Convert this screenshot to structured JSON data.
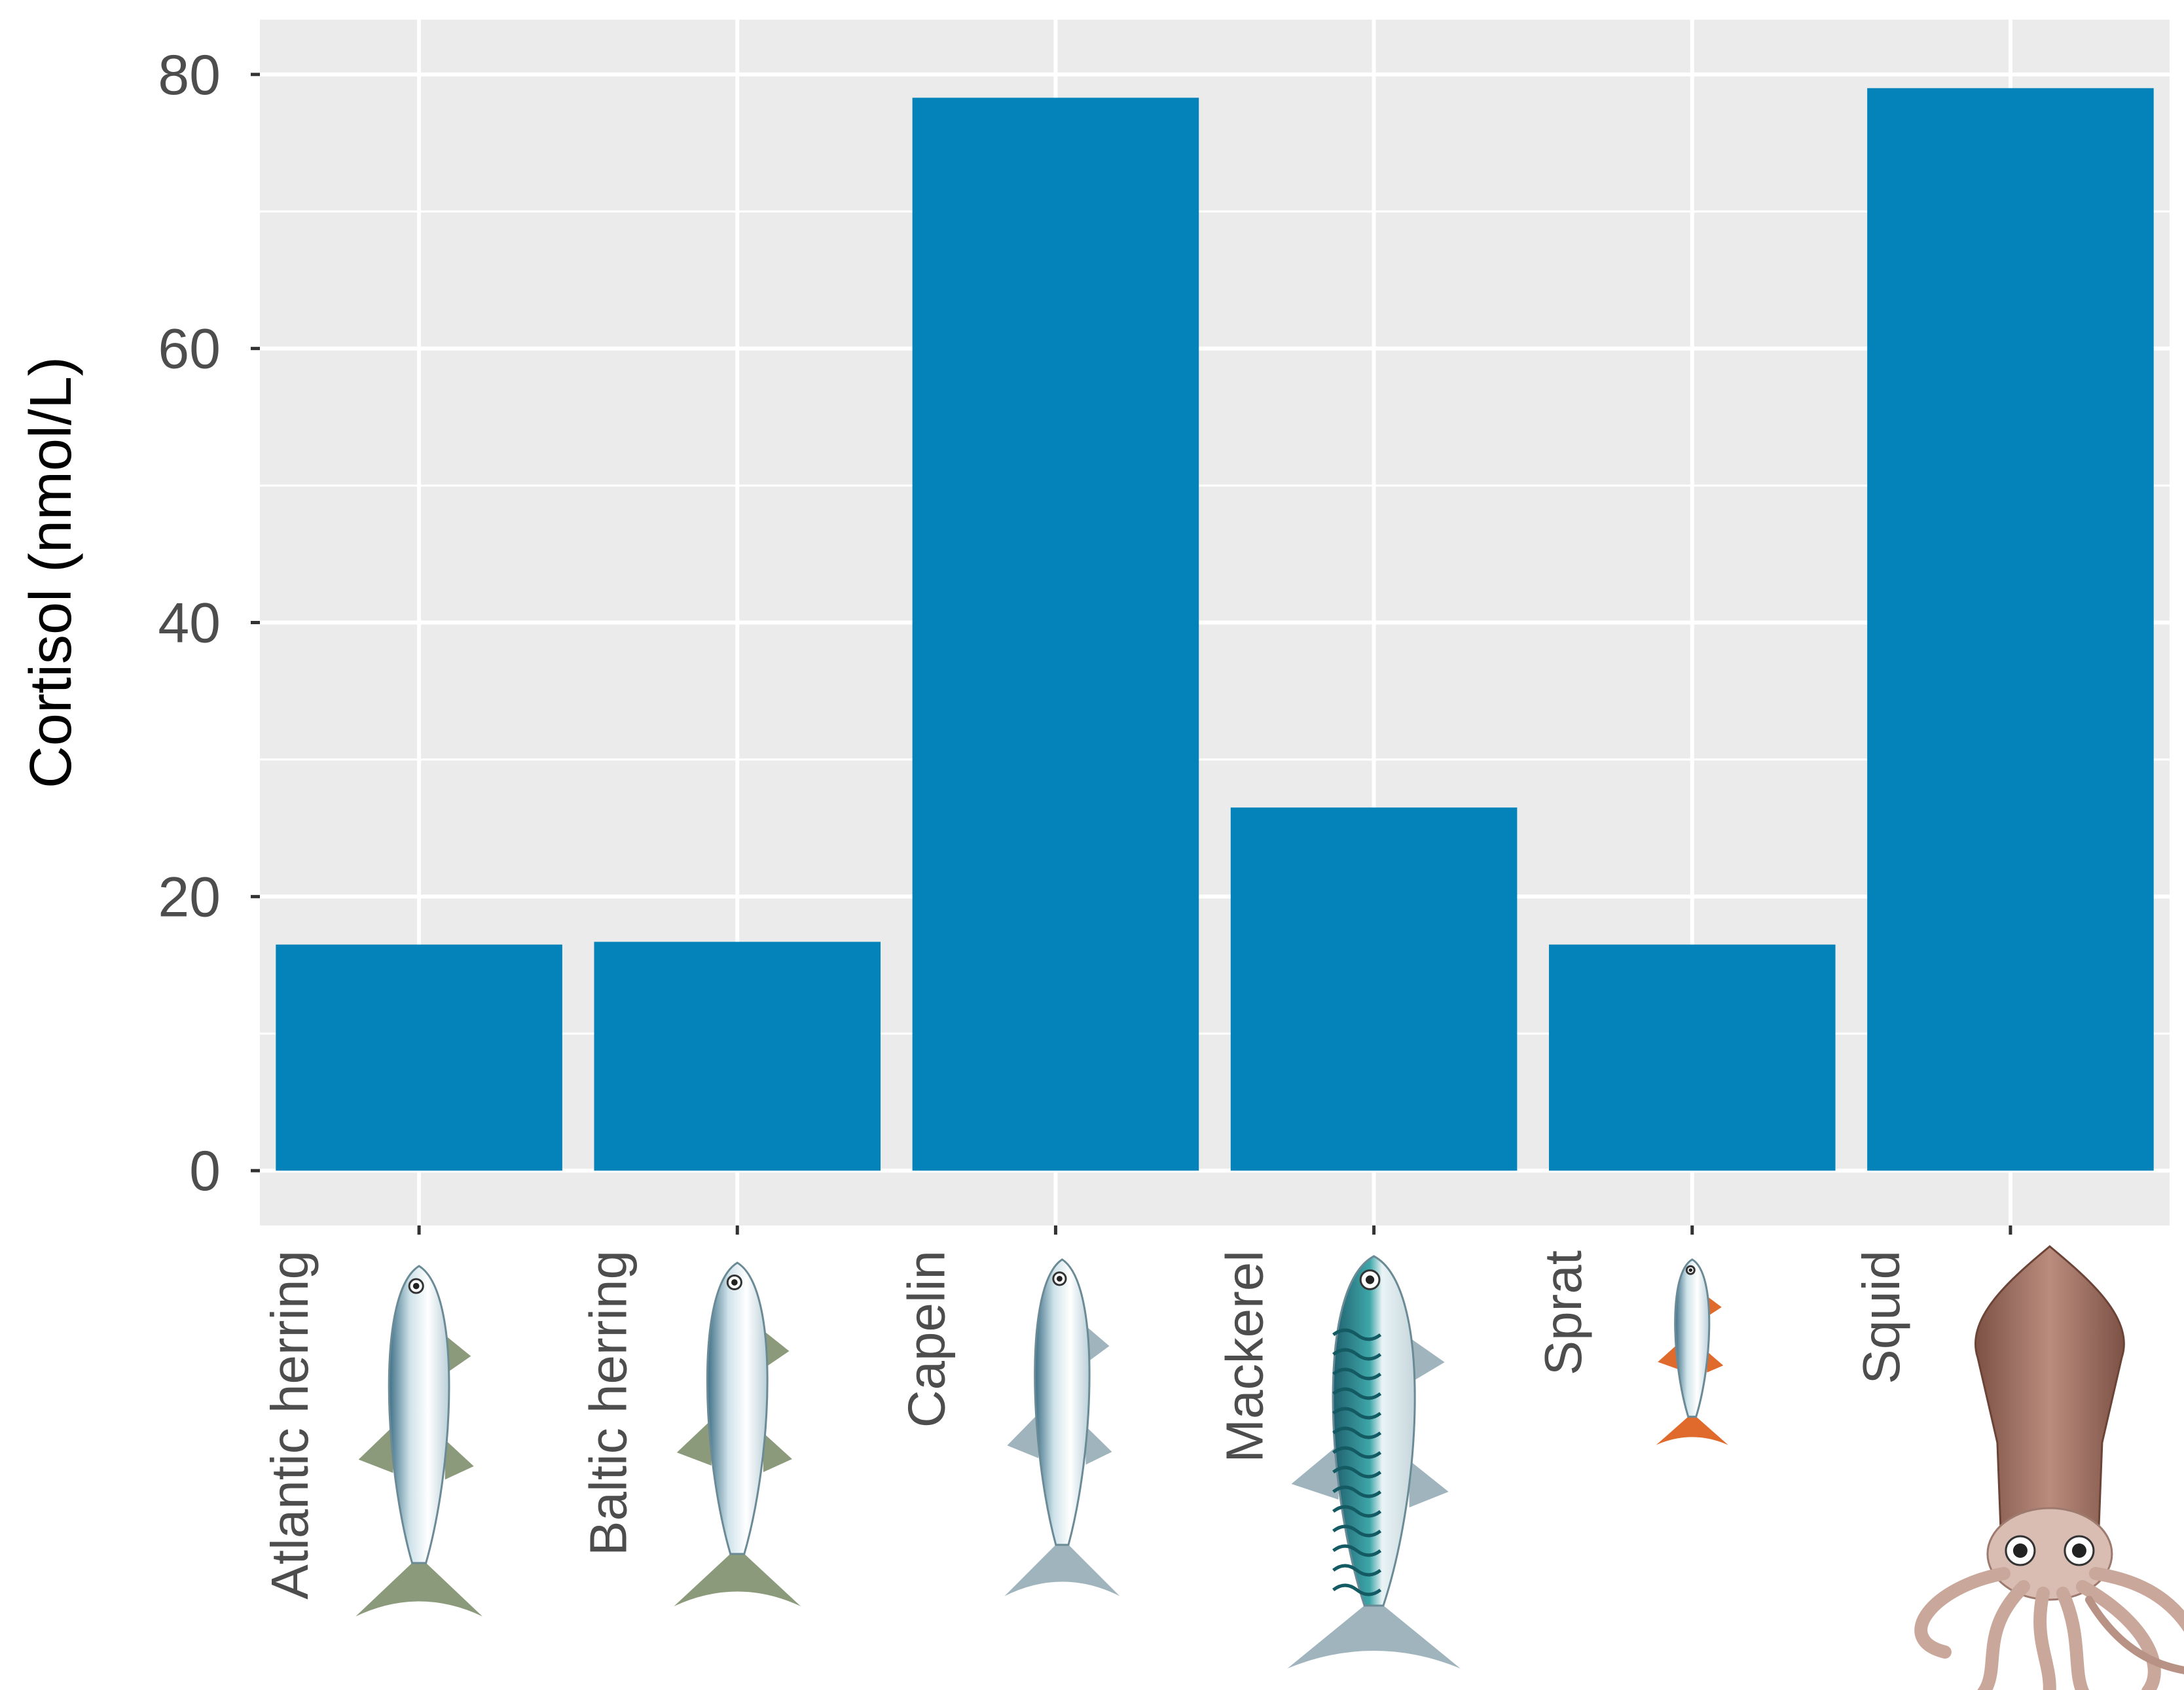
{
  "chart_data": {
    "type": "bar",
    "ylabel": "Cortisol (nmol/L)",
    "xlabel": "",
    "ylim": [
      -4,
      84
    ],
    "yticks": [
      0,
      20,
      40,
      60,
      80
    ],
    "grid": true,
    "legend": "none",
    "categories": [
      "Atlantic herring",
      "Baltic herring",
      "Capelin",
      "Mackerel",
      "Sprat",
      "Squid"
    ],
    "values": [
      16.5,
      16.7,
      78.3,
      26.5,
      16.5,
      79.0
    ],
    "category_icons": [
      "herring-icon",
      "herring-icon",
      "capelin-icon",
      "mackerel-icon",
      "sprat-icon",
      "squid-icon"
    ]
  },
  "colors": {
    "bar": "#0383BA",
    "panel": "#EBEBEB",
    "grid": "#FFFFFF",
    "tick_label": "#4D4D4D",
    "axis_title": "#000000",
    "tick_mark": "#333333"
  }
}
